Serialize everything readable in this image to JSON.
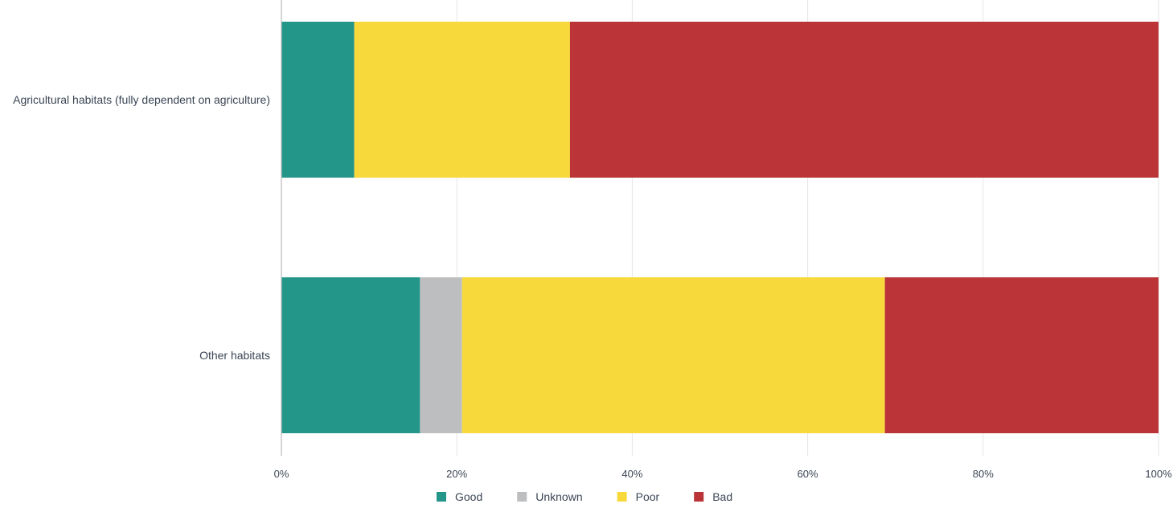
{
  "chart_data": {
    "type": "bar",
    "orientation": "horizontal",
    "stacked": true,
    "title": "",
    "xlabel": "",
    "ylabel": "",
    "categories": [
      "Agricultural habitats (fully dependent on agriculture)",
      "Other habitats"
    ],
    "series": [
      {
        "name": "Good",
        "color": "#239689",
        "values": [
          8.3,
          15.8
        ]
      },
      {
        "name": "Unknown",
        "color": "#bdbebf",
        "values": [
          0,
          4.8
        ]
      },
      {
        "name": "Poor",
        "color": "#f7d93b",
        "values": [
          24.6,
          48.2
        ]
      },
      {
        "name": "Bad",
        "color": "#bb3437",
        "values": [
          67.1,
          31.2
        ]
      }
    ],
    "xlim": [
      0,
      100
    ],
    "x_ticks": [
      "0%",
      "20%",
      "40%",
      "60%",
      "80%",
      "100%"
    ],
    "grid": true,
    "legend_position": "bottom"
  }
}
